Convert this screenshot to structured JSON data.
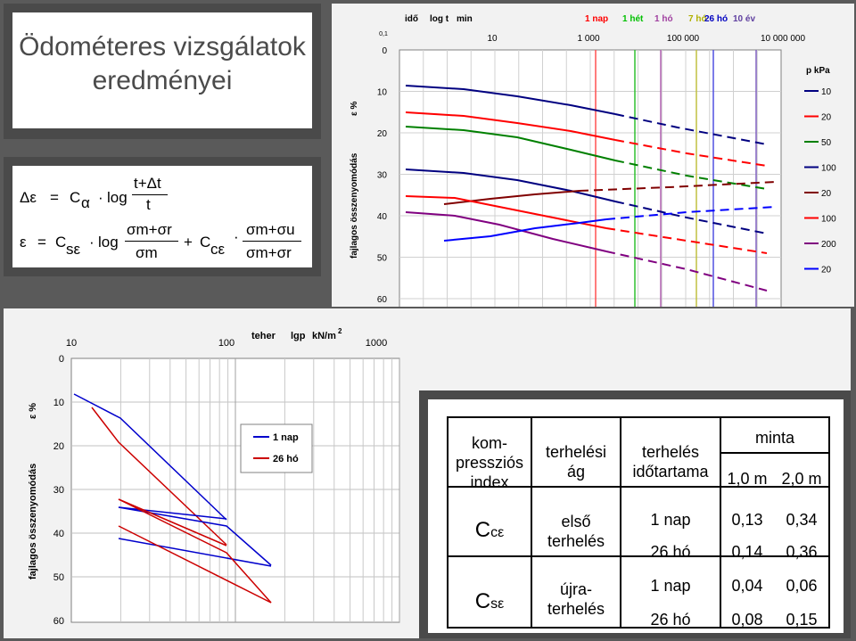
{
  "title": {
    "line1": "Ödométeres vizsgálatok",
    "line2": "eredményei"
  },
  "formula": {
    "eq1": {
      "lhs": "Δε",
      "eq": "=",
      "c": "C",
      "c_sub": "α",
      "dot": "·",
      "log": "log",
      "num": "t+Δt",
      "den": "t"
    },
    "eq2": {
      "lhs": "ε",
      "eq": "=",
      "c1": "C",
      "c1_sub": "sε",
      "dot": "·",
      "log": "log",
      "num1": "σm+σr",
      "den1": "σm",
      "plus": "+",
      "c2": "C",
      "c2_sub": "cε",
      "dot2": "·",
      "num2": "σm+σu",
      "den2": "σm+σr"
    }
  },
  "chart1": {
    "header_ido": "idő",
    "header_logt": "log t",
    "header_min": "min",
    "time_labels": [
      {
        "text": "1 nap",
        "color": "#ff0000"
      },
      {
        "text": "1 hét",
        "color": "#00c000"
      },
      {
        "text": "1 hó",
        "color": "#a040a0"
      },
      {
        "text": "7 hó",
        "color": "#b0b000"
      },
      {
        "text": "26 hó",
        "color": "#0000c0"
      },
      {
        "text": "10 év",
        "color": "#6040a0"
      }
    ],
    "x_ticks": [
      "0,1",
      "10",
      "1 000",
      "100 000",
      "10 000 000"
    ],
    "y_ticks": [
      "0",
      "10",
      "20",
      "30",
      "40",
      "50",
      "60"
    ],
    "y_label": "fajlagos összenyomódás",
    "y_unit": "ε %",
    "legend_title": "p kPa",
    "legend": [
      {
        "label": "10",
        "color": "#000080"
      },
      {
        "label": "20",
        "color": "#ff0000"
      },
      {
        "label": "50",
        "color": "#008000"
      },
      {
        "label": "100",
        "color": "#000080"
      },
      {
        "label": "20",
        "color": "#800000"
      },
      {
        "label": "100",
        "color": "#ff0000"
      },
      {
        "label": "200",
        "color": "#800080"
      },
      {
        "label": "20",
        "color": "#0000ff"
      }
    ]
  },
  "chart2": {
    "x_label": "teher",
    "x_unit_label": "lgp",
    "x_unit": "kN/m",
    "x_unit_sup": "2",
    "x_ticks": [
      "10",
      "100",
      "1000"
    ],
    "y_ticks": [
      "0",
      "10",
      "20",
      "30",
      "40",
      "50",
      "60"
    ],
    "y_label": "fajlagos összenyomódás",
    "y_unit": "ε %",
    "legend": [
      {
        "label": "1 nap",
        "color": "#0000cc"
      },
      {
        "label": "26 hó",
        "color": "#cc0000"
      }
    ]
  },
  "table": {
    "h_index": "kom-\npressziós\nindex",
    "h_branch": "terhelési\nág",
    "h_duration": "terhelés\nidőtartama",
    "h_sample": "minta",
    "h_s1": "1,0 m",
    "h_s2": "2,0 m",
    "c_ce": "C",
    "c_ce_sub": "cε",
    "c_se": "C",
    "c_se_sub": "sε",
    "b1": "első\nterhelés",
    "b2": "újra-\nterhelés",
    "rows": [
      {
        "duration": "1 nap",
        "v1": "0,13",
        "v2": "0,34"
      },
      {
        "duration": "26 hó",
        "v1": "0,14",
        "v2": "0,36"
      },
      {
        "duration": "1 nap",
        "v1": "0,04",
        "v2": "0,06"
      },
      {
        "duration": "26 hó",
        "v1": "0,08",
        "v2": "0,15"
      }
    ]
  }
}
